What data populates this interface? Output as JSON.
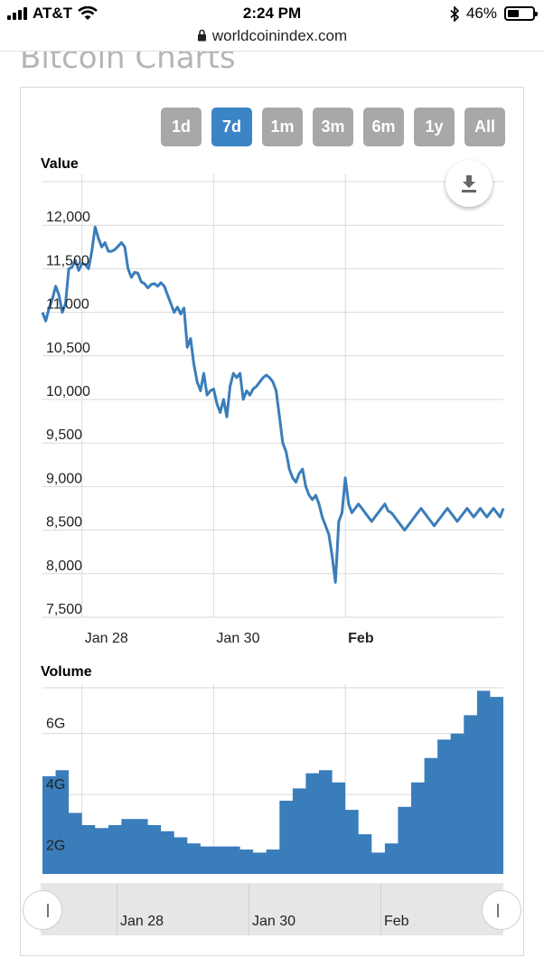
{
  "status_bar": {
    "carrier": "AT&T",
    "time": "2:24 PM",
    "battery": "46%",
    "battery_level": 0.46
  },
  "browser": {
    "url": "worldcoinindex.com"
  },
  "page": {
    "title": "Bitcoin Charts"
  },
  "range_buttons": [
    {
      "label": "1d",
      "active": false
    },
    {
      "label": "7d",
      "active": true
    },
    {
      "label": "1m",
      "active": false
    },
    {
      "label": "3m",
      "active": false
    },
    {
      "label": "6m",
      "active": false
    },
    {
      "label": "1y",
      "active": false
    },
    {
      "label": "All",
      "active": false
    }
  ],
  "colors": {
    "series": "#3a7dbb",
    "active_button": "#3b84c6",
    "button": "#a8a8a8",
    "grid": "#d9d9d9"
  },
  "chart_data": [
    {
      "type": "line",
      "title": "Value",
      "ylim": [
        7500,
        12500
      ],
      "yticks": [
        7500,
        8000,
        8500,
        9000,
        9500,
        10000,
        10500,
        11000,
        11500,
        12000
      ],
      "ytick_labels": [
        "7,500",
        "8,000",
        "8,500",
        "9,000",
        "9,500",
        "10,000",
        "10,500",
        "11,000",
        "11,500",
        "12,000"
      ],
      "xlim": [
        0,
        7
      ],
      "xticks": [
        0.6,
        2.6,
        4.6
      ],
      "xtick_labels": [
        "Jan 28",
        "Jan 30",
        "Feb"
      ],
      "x": [
        0.0,
        0.05,
        0.1,
        0.15,
        0.2,
        0.25,
        0.3,
        0.35,
        0.4,
        0.45,
        0.5,
        0.55,
        0.6,
        0.65,
        0.7,
        0.75,
        0.8,
        0.85,
        0.9,
        0.95,
        1.0,
        1.05,
        1.1,
        1.15,
        1.2,
        1.25,
        1.3,
        1.35,
        1.4,
        1.45,
        1.5,
        1.55,
        1.6,
        1.65,
        1.7,
        1.75,
        1.8,
        1.85,
        1.9,
        1.95,
        2.0,
        2.05,
        2.1,
        2.15,
        2.2,
        2.25,
        2.3,
        2.35,
        2.4,
        2.45,
        2.5,
        2.55,
        2.6,
        2.65,
        2.7,
        2.75,
        2.8,
        2.85,
        2.9,
        2.95,
        3.0,
        3.05,
        3.1,
        3.15,
        3.2,
        3.25,
        3.3,
        3.35,
        3.4,
        3.45,
        3.5,
        3.55,
        3.6,
        3.65,
        3.7,
        3.75,
        3.8,
        3.85,
        3.9,
        3.95,
        4.0,
        4.05,
        4.1,
        4.15,
        4.2,
        4.25,
        4.3,
        4.35,
        4.4,
        4.45,
        4.5,
        4.55,
        4.6,
        4.65,
        4.7,
        4.75,
        4.8,
        4.85,
        4.9,
        4.95,
        5.0,
        5.05,
        5.1,
        5.15,
        5.2,
        5.25,
        5.3,
        5.35,
        5.4,
        5.45,
        5.5,
        5.55,
        5.6,
        5.65,
        5.7,
        5.75,
        5.8,
        5.85,
        5.9,
        5.95,
        6.0,
        6.05,
        6.1,
        6.15,
        6.2,
        6.25,
        6.3,
        6.35,
        6.4,
        6.45,
        6.5,
        6.55,
        6.6,
        6.65,
        6.7,
        6.75,
        6.8,
        6.85,
        6.9,
        6.95,
        7.0
      ],
      "y": [
        11000,
        10900,
        11050,
        11150,
        11300,
        11200,
        11000,
        11100,
        11500,
        11520,
        11600,
        11480,
        11560,
        11550,
        11500,
        11700,
        11980,
        11850,
        11750,
        11800,
        11700,
        11700,
        11720,
        11760,
        11800,
        11750,
        11500,
        11400,
        11460,
        11450,
        11350,
        11330,
        11280,
        11320,
        11330,
        11300,
        11340,
        11300,
        11200,
        11100,
        11000,
        11060,
        10980,
        11050,
        10600,
        10700,
        10400,
        10200,
        10100,
        10300,
        10050,
        10100,
        10120,
        9950,
        9850,
        10000,
        9800,
        10150,
        10300,
        10250,
        10300,
        10000,
        10100,
        10050,
        10120,
        10150,
        10200,
        10250,
        10280,
        10250,
        10200,
        10100,
        9800,
        9500,
        9400,
        9200,
        9100,
        9050,
        9150,
        9200,
        9000,
        8900,
        8850,
        8900,
        8800,
        8650,
        8550,
        8450,
        8200,
        7900,
        8600,
        8700,
        9100,
        8800,
        8700,
        8750,
        8800,
        8750,
        8700,
        8650,
        8600,
        8650,
        8700,
        8750,
        8800,
        8720,
        8700,
        8650,
        8600,
        8550,
        8500,
        8550,
        8600,
        8650,
        8700,
        8750,
        8700,
        8650,
        8600,
        8550,
        8600,
        8650,
        8700,
        8750,
        8700,
        8650,
        8600,
        8650,
        8700,
        8750,
        8700,
        8650,
        8700,
        8750,
        8700,
        8650,
        8700,
        8750,
        8700,
        8650,
        8750
      ]
    },
    {
      "type": "area",
      "title": "Volume",
      "ylim": [
        1400000000,
        7500000000
      ],
      "yticks": [
        2000000000,
        4000000000,
        6000000000
      ],
      "ytick_labels": [
        "2G",
        "4G",
        "6G"
      ],
      "xlim": [
        0,
        7
      ],
      "xticks": [
        0.6,
        2.6,
        4.6
      ],
      "xtick_labels": [
        "Jan 28",
        "Jan 30",
        "Feb"
      ],
      "x": [
        0.0,
        0.2,
        0.4,
        0.6,
        0.8,
        1.0,
        1.2,
        1.4,
        1.6,
        1.8,
        2.0,
        2.2,
        2.4,
        2.6,
        2.8,
        3.0,
        3.2,
        3.4,
        3.6,
        3.8,
        4.0,
        4.2,
        4.4,
        4.6,
        4.8,
        5.0,
        5.2,
        5.4,
        5.6,
        5.8,
        6.0,
        6.2,
        6.4,
        6.6,
        6.8,
        7.0
      ],
      "y": [
        4600000000,
        4800000000,
        3400000000,
        3000000000,
        2900000000,
        3000000000,
        3200000000,
        3200000000,
        3000000000,
        2800000000,
        2600000000,
        2400000000,
        2300000000,
        2300000000,
        2300000000,
        2200000000,
        2100000000,
        2200000000,
        3800000000,
        4200000000,
        4700000000,
        4800000000,
        4400000000,
        3500000000,
        2700000000,
        2100000000,
        2400000000,
        3600000000,
        4400000000,
        5200000000,
        5800000000,
        6000000000,
        6600000000,
        7400000000,
        7200000000,
        7100000000
      ]
    }
  ],
  "navigator": {
    "tick_labels": [
      "Jan 28",
      "Jan 30",
      "Feb"
    ]
  }
}
